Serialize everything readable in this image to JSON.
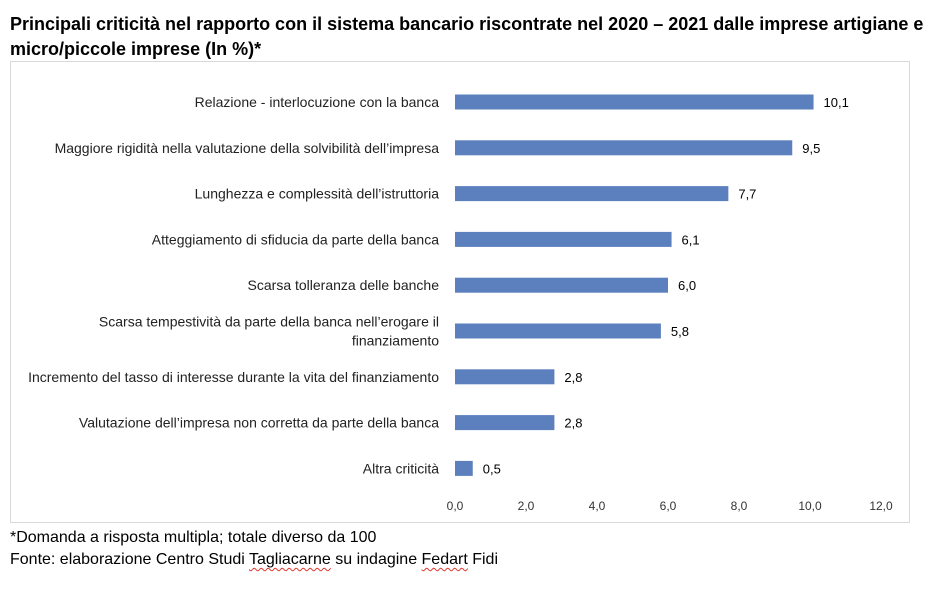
{
  "title": "Principali criticità nel rapporto con il sistema bancario riscontrate nel 2020 – 2021 dalle imprese artigiane e micro/piccole imprese (In %)*",
  "chart_data": {
    "type": "bar",
    "orientation": "horizontal",
    "categories": [
      "Relazione - interlocuzione con la banca",
      "Maggiore rigidità nella valutazione della solvibilità dell’impresa",
      "Lunghezza e complessità dell’istruttoria",
      "Atteggiamento di sfiducia da parte della banca",
      "Scarsa tolleranza delle banche",
      "Scarsa tempestività da parte della banca nell’erogare il finanziamento",
      "Incremento del tasso di interesse durante la vita del finanziamento",
      "Valutazione dell’impresa non corretta da parte della banca",
      "Altra criticità"
    ],
    "values": [
      10.1,
      9.5,
      7.7,
      6.1,
      6.0,
      5.8,
      2.8,
      2.8,
      0.5
    ],
    "value_labels": [
      "10,1",
      "9,5",
      "7,7",
      "6,1",
      "6,0",
      "5,8",
      "2,8",
      "2,8",
      "0,5"
    ],
    "xlim": [
      0,
      12
    ],
    "x_ticks": [
      "0,0",
      "2,0",
      "4,0",
      "6,0",
      "8,0",
      "10,0",
      "12,0"
    ],
    "grid": false,
    "bar_color": "#5b80bd"
  },
  "notes": {
    "line1": "*Domanda a risposta multipla; totale diverso da 100",
    "line2_prefix": "Fonte: elaborazione Centro Studi ",
    "line2_word1": "Tagliacarne",
    "line2_middle": " su indagine ",
    "line2_word2": "Fedart",
    "line2_suffix": " Fidi"
  }
}
